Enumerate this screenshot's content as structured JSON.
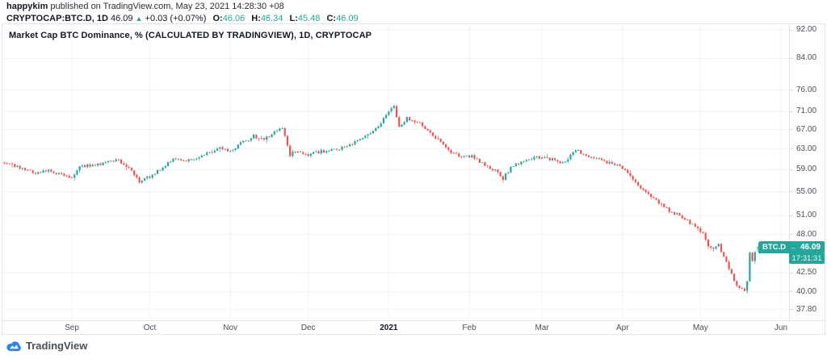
{
  "header": {
    "author": "happykim",
    "published": " published on TradingView.com, May 23, 2021 14:28:30 +08",
    "symbol_line": {
      "symbol": "CRYPTOCAP:BTC.D, 1D",
      "last": "46.09",
      "arrow": "▲",
      "change": "+0.03 (+0.07%)",
      "o_label": "O:",
      "o": "46.06",
      "h_label": "H:",
      "h": "46.34",
      "l_label": "L:",
      "l": "45.48",
      "c_label": "C:",
      "c": "46.09"
    }
  },
  "chart": {
    "title": "Market Cap BTC Dominance, % (CALCULATED BY TRADINGVIEW), 1D, CRYPTOCAP",
    "price_label": {
      "series": "BTC.D",
      "sep": "–",
      "value": "46.09",
      "countdown": "17:31:31"
    }
  },
  "footer": {
    "brand": "TradingView"
  },
  "colors": {
    "up": "#26a69a",
    "down": "#ef5350",
    "badge": "#26a69a",
    "grid": "#f0f3fa",
    "border": "#e0e3eb",
    "axis_text": "#4a4e59",
    "logo_blue": "#2d81f0",
    "text": "#131722"
  },
  "chart_data": {
    "type": "candlestick",
    "title": "Market Cap BTC Dominance, % (CALCULATED BY TRADINGVIEW), 1D, CRYPTOCAP",
    "y_scale": "log",
    "ylim_approx": [
      36.5,
      93.5
    ],
    "y_axis_labels": [
      92,
      84,
      76,
      71,
      67,
      63,
      59,
      55,
      51,
      48,
      42.5,
      40,
      37.8
    ],
    "months": [
      {
        "label": "Sep",
        "date": "2020-09-01",
        "bold": false
      },
      {
        "label": "Oct",
        "date": "2020-10-01",
        "bold": false
      },
      {
        "label": "Nov",
        "date": "2020-11-01",
        "bold": false
      },
      {
        "label": "Dec",
        "date": "2020-12-01",
        "bold": false
      },
      {
        "label": "2021",
        "date": "2021-01-01",
        "bold": true
      },
      {
        "label": "Feb",
        "date": "2021-02-01",
        "bold": false
      },
      {
        "label": "Mar",
        "date": "2021-03-01",
        "bold": false
      },
      {
        "label": "Apr",
        "date": "2021-04-01",
        "bold": false
      },
      {
        "label": "May",
        "date": "2021-05-01",
        "bold": false
      },
      {
        "label": "Jun",
        "date": "2021-06-01",
        "bold": false
      }
    ],
    "start_date": "2020-08-06",
    "end_date": "2021-05-23",
    "last_bar": {
      "open": 46.06,
      "high": 46.34,
      "low": 45.48,
      "close": 46.09
    },
    "anchors": [
      [
        "2020-08-06",
        60.4
      ],
      [
        "2020-08-10",
        59.7
      ],
      [
        "2020-08-14",
        59.1
      ],
      [
        "2020-08-18",
        58.4
      ],
      [
        "2020-08-23",
        58.9
      ],
      [
        "2020-08-28",
        58.1
      ],
      [
        "2020-09-01",
        57.4
      ],
      [
        "2020-09-04",
        59.6
      ],
      [
        "2020-09-09",
        59.9
      ],
      [
        "2020-09-14",
        60.3
      ],
      [
        "2020-09-19",
        60.9
      ],
      [
        "2020-09-23",
        59.1
      ],
      [
        "2020-09-27",
        56.9
      ],
      [
        "2020-10-01",
        57.7
      ],
      [
        "2020-10-06",
        59.2
      ],
      [
        "2020-10-10",
        61.2
      ],
      [
        "2020-10-14",
        60.5
      ],
      [
        "2020-10-19",
        61.2
      ],
      [
        "2020-10-24",
        62.4
      ],
      [
        "2020-10-28",
        63.1
      ],
      [
        "2020-11-01",
        62.6
      ],
      [
        "2020-11-06",
        64.4
      ],
      [
        "2020-11-10",
        65.6
      ],
      [
        "2020-11-14",
        65.0
      ],
      [
        "2020-11-18",
        66.4
      ],
      [
        "2020-11-21",
        67.3
      ],
      [
        "2020-11-24",
        61.9
      ],
      [
        "2020-11-27",
        62.7
      ],
      [
        "2020-12-01",
        61.9
      ],
      [
        "2020-12-06",
        62.5
      ],
      [
        "2020-12-11",
        62.9
      ],
      [
        "2020-12-16",
        63.4
      ],
      [
        "2020-12-21",
        64.9
      ],
      [
        "2020-12-26",
        66.7
      ],
      [
        "2020-12-29",
        68.4
      ],
      [
        "2021-01-01",
        70.7
      ],
      [
        "2021-01-03",
        72.3
      ],
      [
        "2021-01-05",
        67.5
      ],
      [
        "2021-01-08",
        69.4
      ],
      [
        "2021-01-11",
        68.9
      ],
      [
        "2021-01-14",
        67.9
      ],
      [
        "2021-01-17",
        66.1
      ],
      [
        "2021-01-21",
        64.4
      ],
      [
        "2021-01-25",
        62.4
      ],
      [
        "2021-01-29",
        61.2
      ],
      [
        "2021-02-02",
        61.7
      ],
      [
        "2021-02-07",
        59.7
      ],
      [
        "2021-02-11",
        58.8
      ],
      [
        "2021-02-14",
        57.4
      ],
      [
        "2021-02-18",
        59.9
      ],
      [
        "2021-02-23",
        60.8
      ],
      [
        "2021-02-28",
        61.4
      ],
      [
        "2021-03-05",
        60.9
      ],
      [
        "2021-03-09",
        60.1
      ],
      [
        "2021-03-14",
        62.8
      ],
      [
        "2021-03-18",
        61.6
      ],
      [
        "2021-03-23",
        60.8
      ],
      [
        "2021-03-28",
        60.2
      ],
      [
        "2021-04-01",
        59.2
      ],
      [
        "2021-04-05",
        57.3
      ],
      [
        "2021-04-09",
        55.2
      ],
      [
        "2021-04-13",
        54.0
      ],
      [
        "2021-04-17",
        52.3
      ],
      [
        "2021-04-21",
        51.4
      ],
      [
        "2021-04-25",
        50.4
      ],
      [
        "2021-04-29",
        49.2
      ],
      [
        "2021-05-02",
        48.3
      ],
      [
        "2021-05-04",
        46.3
      ],
      [
        "2021-05-06",
        45.9
      ],
      [
        "2021-05-08",
        46.4
      ],
      [
        "2021-05-10",
        44.8
      ],
      [
        "2021-05-12",
        43.1
      ],
      [
        "2021-05-14",
        41.4
      ],
      [
        "2021-05-16",
        40.5
      ],
      [
        "2021-05-18",
        40.2
      ],
      [
        "2021-05-19",
        41.3
      ],
      [
        "2021-05-20",
        45.1
      ],
      [
        "2021-05-21",
        44.2
      ],
      [
        "2021-05-22",
        45.5
      ],
      [
        "2021-05-23",
        46.09
      ]
    ]
  }
}
